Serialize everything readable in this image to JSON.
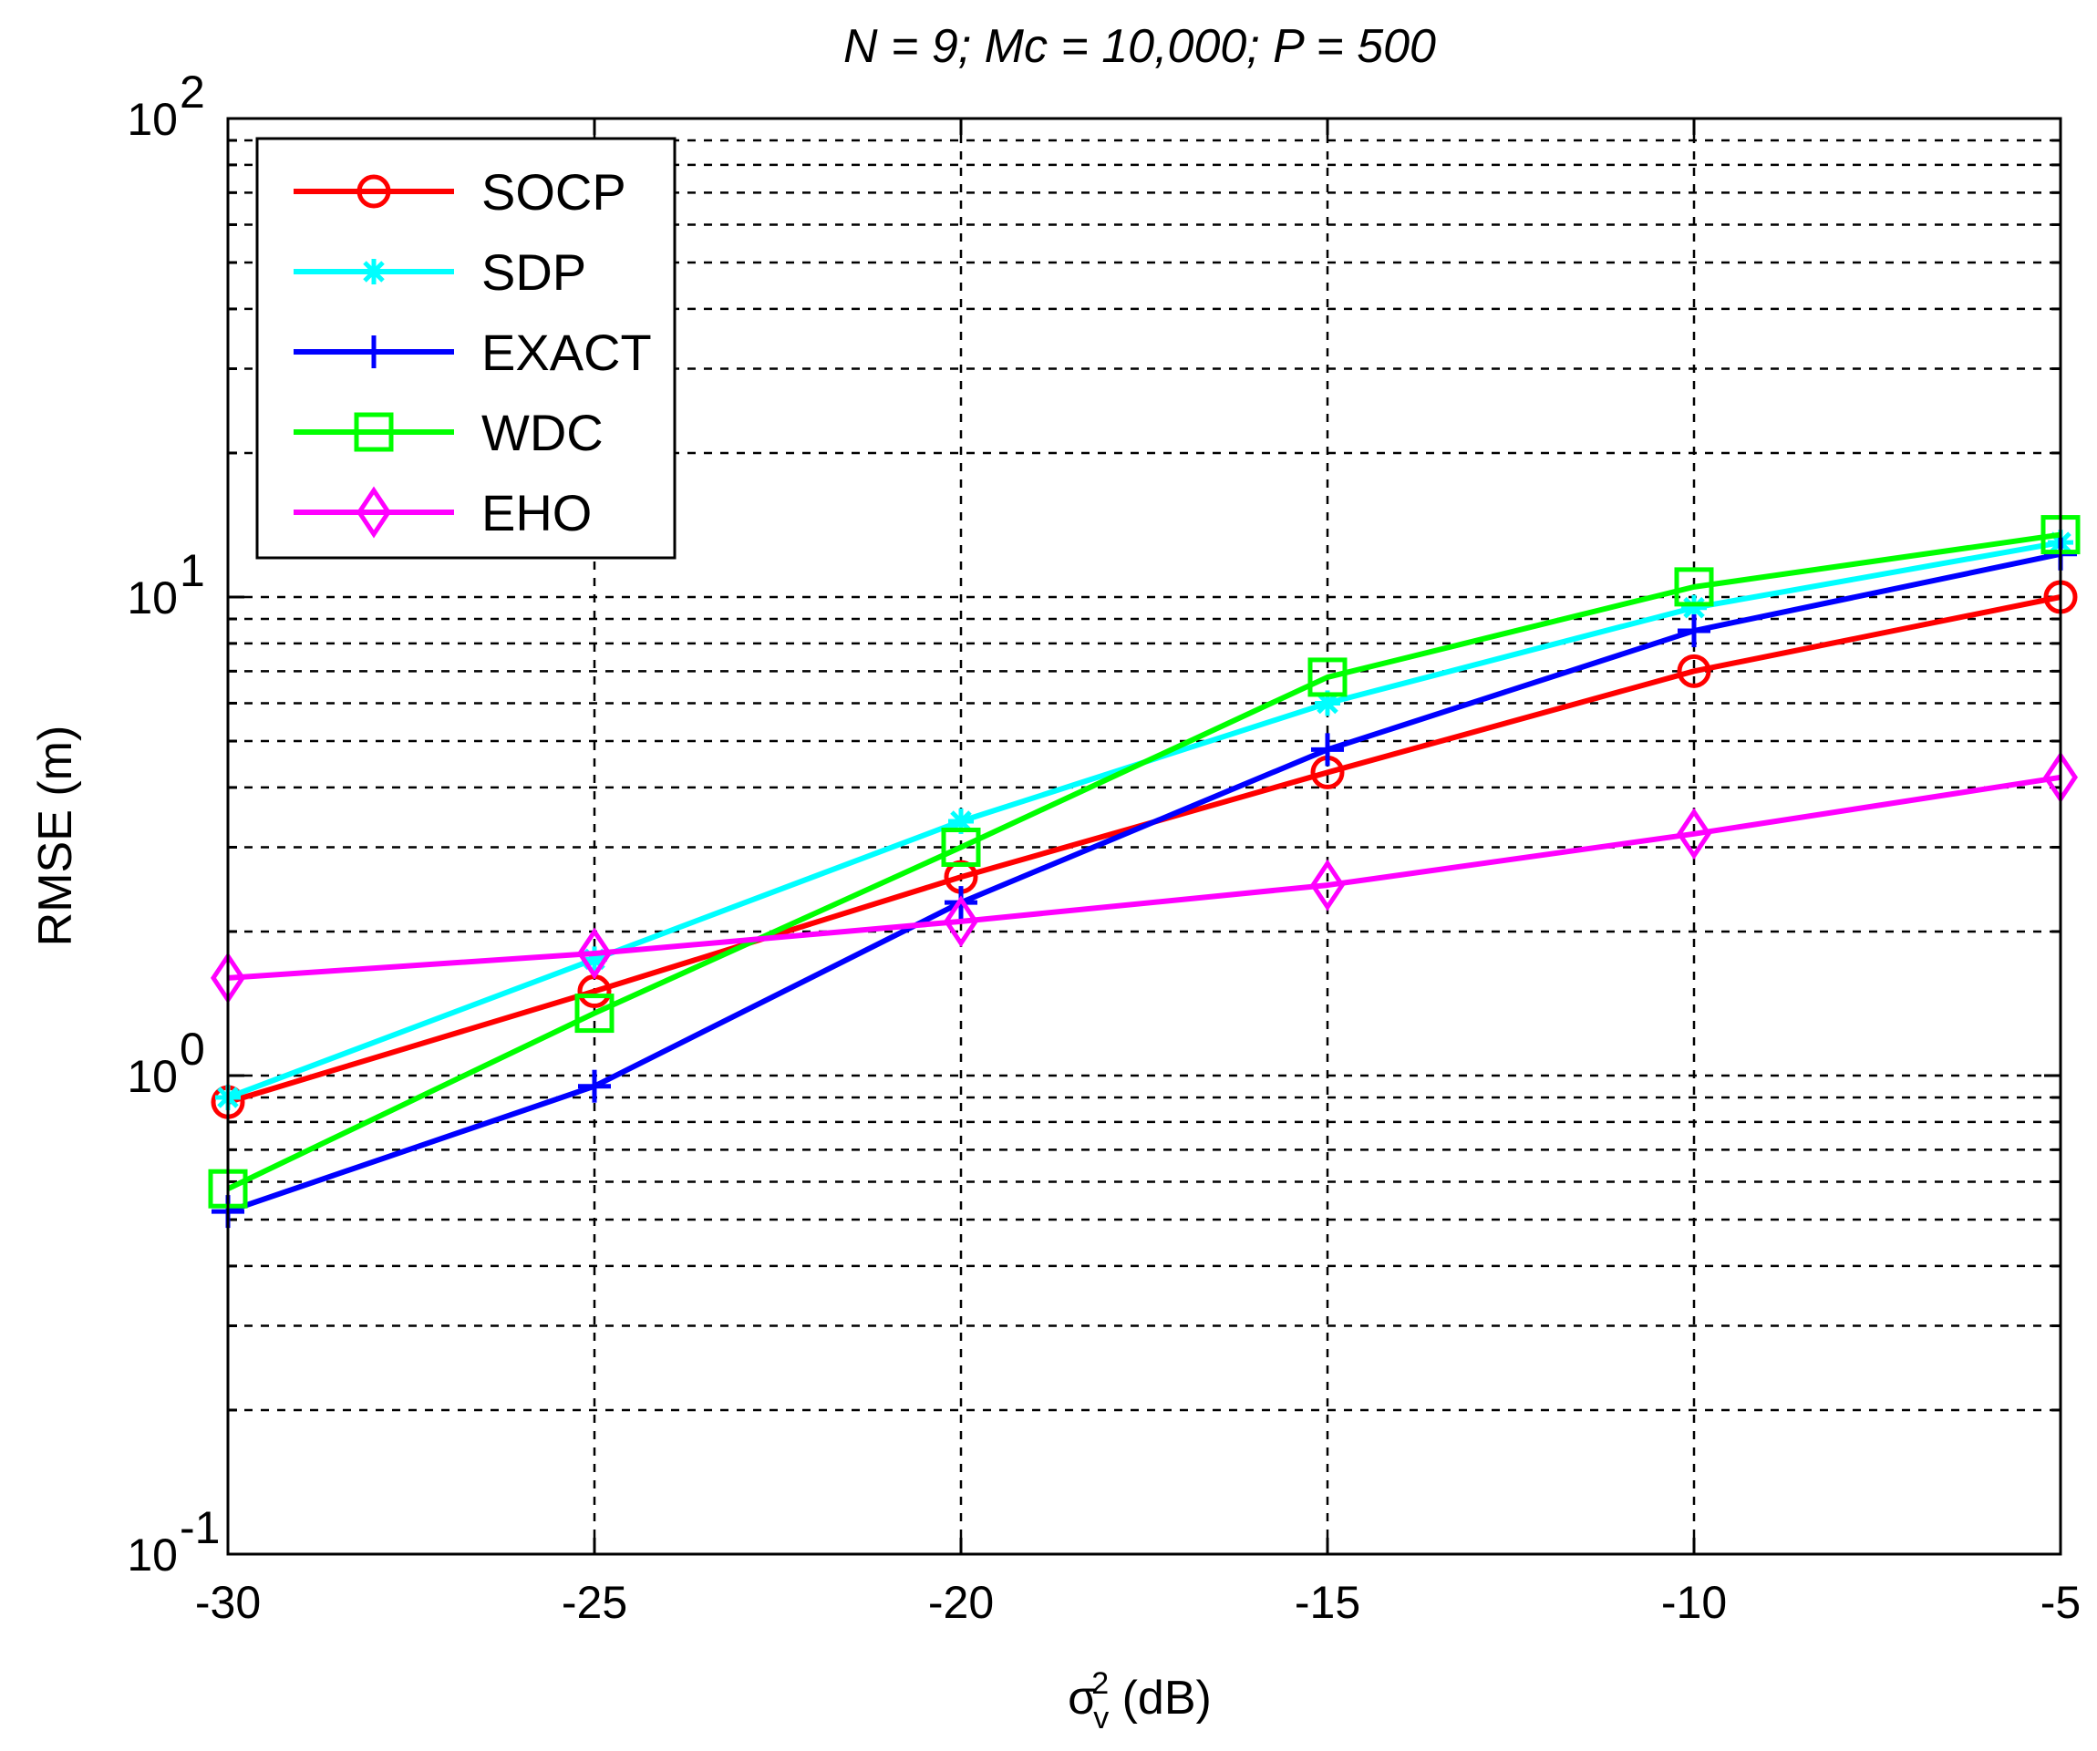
{
  "chart_data": {
    "type": "line",
    "title": "N = 9; Mc = 10,000; P = 500",
    "xlabel": {
      "base": "σ",
      "sup": "2",
      "sub": "v",
      "unit": " (dB)"
    },
    "ylabel": "RMSE (m)",
    "x": [
      -30,
      -25,
      -20,
      -15,
      -10,
      -5
    ],
    "xlim": [
      -30,
      -5
    ],
    "ylim": [
      0.1,
      100
    ],
    "yscale": "log",
    "grid": true,
    "legend_position": "top-left",
    "x_tick_labels": [
      "-30",
      "-25",
      "-20",
      "-15",
      "-10",
      "-5"
    ],
    "y_tick_labels": [
      {
        "value": 0.1,
        "base": "10",
        "exp": "-1"
      },
      {
        "value": 1,
        "base": "10",
        "exp": "0"
      },
      {
        "value": 10,
        "base": "10",
        "exp": "1"
      },
      {
        "value": 100,
        "base": "10",
        "exp": "2"
      }
    ],
    "series": [
      {
        "name": "SOCP",
        "color": "#ff0000",
        "marker": "circle",
        "values": [
          0.88,
          1.5,
          2.6,
          4.3,
          7.0,
          10.0
        ]
      },
      {
        "name": "SDP",
        "color": "#00ffff",
        "marker": "star",
        "values": [
          0.9,
          1.75,
          3.4,
          6.0,
          9.5,
          13.0
        ]
      },
      {
        "name": "EXACT",
        "color": "#0000ff",
        "marker": "plus",
        "values": [
          0.52,
          0.95,
          2.3,
          4.8,
          8.5,
          12.3
        ]
      },
      {
        "name": "WDC",
        "color": "#00ff00",
        "marker": "square",
        "values": [
          0.58,
          1.35,
          3.0,
          6.8,
          10.5,
          13.5
        ]
      },
      {
        "name": "EHO",
        "color": "#ff00ff",
        "marker": "diamond",
        "values": [
          1.6,
          1.8,
          2.1,
          2.5,
          3.2,
          4.2
        ]
      }
    ]
  }
}
